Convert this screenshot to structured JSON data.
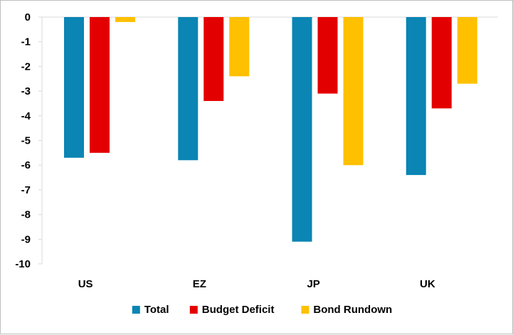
{
  "chart_data": {
    "type": "bar",
    "categories": [
      "US",
      "EZ",
      "JP",
      "UK"
    ],
    "series": [
      {
        "name": "Total",
        "color": "#0a85b4",
        "values": [
          -5.7,
          -5.8,
          -9.1,
          -6.4
        ]
      },
      {
        "name": "Budget Deficit",
        "color": "#e30000",
        "values": [
          -5.5,
          -3.4,
          -3.1,
          -3.7
        ]
      },
      {
        "name": "Bond Rundown",
        "color": "#ffc000",
        "values": [
          -0.2,
          -2.4,
          -6.0,
          -2.7
        ]
      }
    ],
    "ylim": [
      -10,
      0
    ],
    "yticks": [
      0,
      -1,
      -2,
      -3,
      -4,
      -5,
      -6,
      -7,
      -8,
      -9,
      -10
    ],
    "grid": false,
    "legend_position": "bottom"
  }
}
